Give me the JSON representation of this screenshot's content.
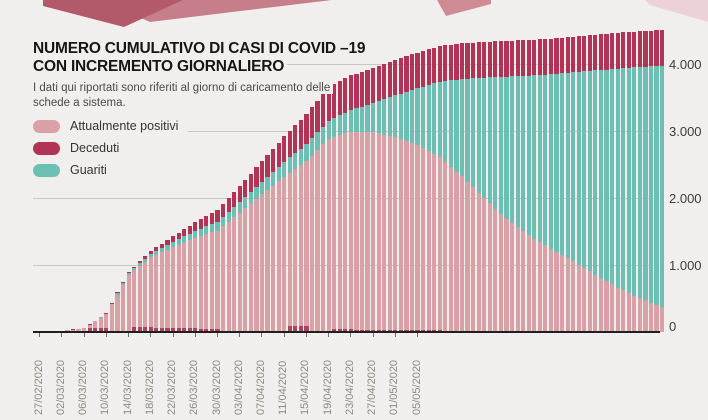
{
  "header": {
    "title_line1": "NUMERO CUMULATIVO DI CASI DI COVID –19",
    "title_line2": "CON INCREMENTO GIORNALIERO",
    "subtitle_line1": "I dati qui riportati sono riferiti al giorno di caricamento delle",
    "subtitle_line2": "schede a sistema."
  },
  "legend": [
    {
      "id": "attualmente_positivi",
      "label": "Attualmente positivi",
      "color": "#d9a0a6"
    },
    {
      "id": "deceduti",
      "label": "Deceduti",
      "color": "#b13457"
    },
    {
      "id": "guariti",
      "label": "Guariti",
      "color": "#6cbfb2"
    }
  ],
  "colors": {
    "background": "#f1efed",
    "bar_attualmente_positivi": "#d9a0a6",
    "bar_deceduti": "#b13457",
    "bar_guariti": "#6cbfb2",
    "increment_mark": "#a33053",
    "gridline": "#c9c7c4",
    "axis": "#1f1f1f",
    "title_text": "#161616",
    "subtitle_text": "#4a4a4a",
    "x_tick_label": "#8a8a86",
    "y_tick_label": "#3c3c3c",
    "deco_dark_rose": "#b2596a",
    "deco_mid_rose": "#c67e8a",
    "deco_light_rose": "#cf8b94",
    "deco_pale_rose": "#ecd2d6"
  },
  "chart_data": {
    "type": "bar",
    "stacked": true,
    "title": "NUMERO CUMULATIVO DI CASI DI COVID –19 CON INCREMENTO GIORNALIERO",
    "start_date": "27/02/2020",
    "num_days": 113,
    "grid": "horizontal",
    "legend_position": "top-left",
    "stack_order_bottom_to_top": [
      "attualmente_positivi",
      "guariti",
      "deceduti"
    ],
    "x_tick_labels": [
      "27/02/2020",
      "02/03/2020",
      "06/03/2020",
      "10/03/2020",
      "14/03/2020",
      "18/03/2020",
      "22/03/2020",
      "26/03/2020",
      "30/03/2020",
      "03/04/2020",
      "07/04/2020",
      "11/04/2020",
      "15/04/2020",
      "19/04/2020",
      "23/04/2020",
      "27/04/2020",
      "01/05/2020",
      "05/05/2020"
    ],
    "x_tick_label_every_days": 4,
    "y_tick_labels": [
      "0",
      "1.000",
      "2.000",
      "3.000",
      "4.000"
    ],
    "y_tick_values": [
      0,
      1000,
      2000,
      3000,
      4000
    ],
    "ylim": [
      0,
      4550
    ],
    "series_anchors_every_4_days": {
      "day": [
        0,
        4,
        8,
        12,
        16,
        20,
        24,
        28,
        32,
        36,
        40,
        44,
        48,
        52,
        56,
        60,
        64,
        68,
        72,
        76,
        80,
        84,
        88,
        92,
        96,
        100,
        104,
        108,
        112
      ],
      "totale_cumulativo": [
        3,
        16,
        60,
        280,
        900,
        1210,
        1430,
        1640,
        1820,
        2180,
        2550,
        2920,
        3250,
        3660,
        3830,
        3940,
        4060,
        4170,
        4270,
        4310,
        4330,
        4345,
        4360,
        4380,
        4410,
        4440,
        4465,
        4490,
        4510
      ],
      "attualmente_positivi": [
        3,
        15,
        55,
        262,
        855,
        1115,
        1267,
        1405,
        1512,
        1780,
        2055,
        2315,
        2545,
        2885,
        2990,
        2985,
        2910,
        2788,
        2605,
        2325,
        1995,
        1690,
        1445,
        1245,
        1055,
        855,
        660,
        505,
        375
      ],
      "guariti": [
        0,
        1,
        3,
        10,
        25,
        50,
        78,
        105,
        128,
        155,
        185,
        225,
        255,
        270,
        320,
        430,
        620,
        850,
        1130,
        1450,
        1800,
        2120,
        2380,
        2600,
        2820,
        3050,
        3270,
        3450,
        3600
      ],
      "deceduti": [
        0,
        0,
        2,
        8,
        20,
        45,
        85,
        130,
        180,
        245,
        310,
        380,
        450,
        505,
        520,
        525,
        530,
        532,
        535,
        535,
        535,
        535,
        535,
        535,
        535,
        535,
        535,
        535,
        535
      ]
    }
  }
}
